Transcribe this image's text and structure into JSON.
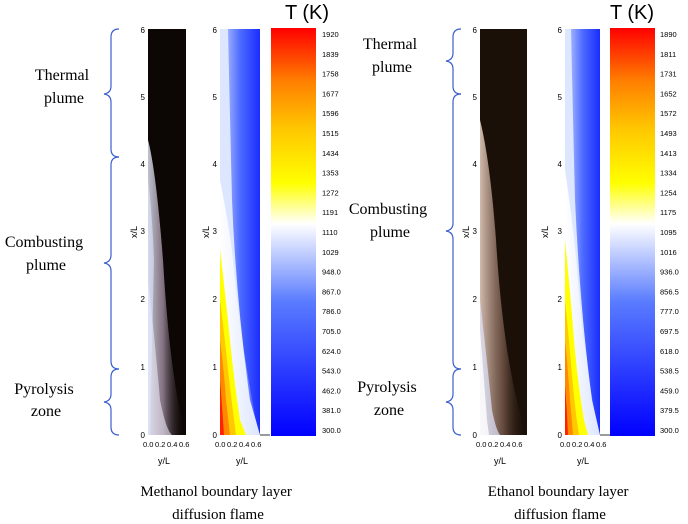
{
  "panels": [
    {
      "name": "methanol",
      "zones": [
        {
          "label": "Thermal plume",
          "lines": [
            "Thermal",
            "plume"
          ]
        },
        {
          "label": "Combusting plume",
          "lines": [
            "Combusting",
            "plume"
          ]
        },
        {
          "label": "Pyrolysis zone",
          "lines": [
            "Pyrolysis",
            "zone"
          ]
        }
      ],
      "zone_extents_x_over_L": [
        [
          4.0,
          6.0
        ],
        [
          1.0,
          4.0
        ],
        [
          0.0,
          1.0
        ]
      ],
      "x_axis_label": "x/L",
      "y_axis_label": "y/L",
      "x_ticks": [
        "0",
        "1",
        "2",
        "3",
        "4",
        "5",
        "6"
      ],
      "y_ticks": [
        "0.0",
        "0.2",
        "0.4",
        "0.6"
      ],
      "temperature_title": "T (K)",
      "temperature_ticks": [
        "1920",
        "1839",
        "1758",
        "1677",
        "1596",
        "1515",
        "1434",
        "1353",
        "1272",
        "1191",
        "1110",
        "1029",
        "948.0",
        "867.0",
        "786.0",
        "705.0",
        "624.0",
        "543.0",
        "462.0",
        "381.0",
        "300.0"
      ],
      "caption_lines": [
        "Methanol boundary layer",
        "diffusion flame"
      ]
    },
    {
      "name": "ethanol",
      "zones": [
        {
          "label": "Thermal plume",
          "lines": [
            "Thermal",
            "plume"
          ]
        },
        {
          "label": "Combusting plume",
          "lines": [
            "Combusting",
            "plume"
          ]
        },
        {
          "label": "Pyrolysis zone",
          "lines": [
            "Pyrolysis",
            "zone"
          ]
        }
      ],
      "zone_extents_x_over_L": [
        [
          5.0,
          6.0
        ],
        [
          1.0,
          5.0
        ],
        [
          0.0,
          1.0
        ]
      ],
      "x_axis_label": "x/L",
      "y_axis_label": "y/L",
      "x_ticks": [
        "0",
        "1",
        "2",
        "3",
        "4",
        "5",
        "6"
      ],
      "y_ticks": [
        "0.0",
        "0.2",
        "0.4",
        "0.6"
      ],
      "temperature_title": "T (K)",
      "temperature_ticks": [
        "1890",
        "1811",
        "1731",
        "1652",
        "1572",
        "1493",
        "1413",
        "1334",
        "1254",
        "1175",
        "1095",
        "1016",
        "936.0",
        "856.5",
        "777.0",
        "697.5",
        "618.0",
        "538.5",
        "459.0",
        "379.5",
        "300.0"
      ],
      "caption_lines": [
        "Ethanol boundary layer",
        "diffusion flame"
      ]
    }
  ],
  "colors": {
    "brace": "#3a5fcd",
    "flame_dark": "#0c0604",
    "temp_scale": [
      "#0000ff",
      "#5a7cff",
      "#ffffff",
      "#ffff00",
      "#ffc800",
      "#ff7f00",
      "#ff0000"
    ]
  }
}
